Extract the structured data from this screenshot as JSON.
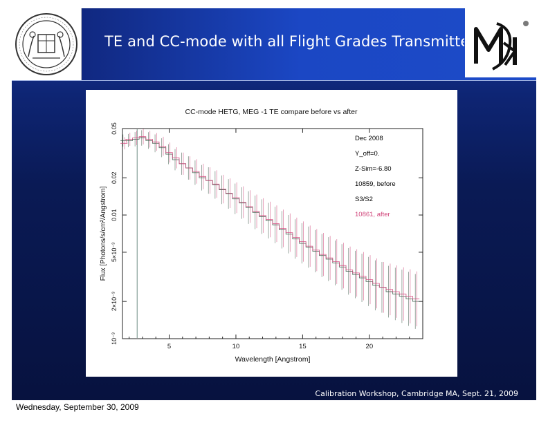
{
  "slide": {
    "title": "TE and CC-mode with all Flight Grades Transmitted",
    "footer": "Calibration Workshop, Cambridge MA, Sept. 21, 2009"
  },
  "page": {
    "date": "Wednesday, September 30, 2009"
  },
  "logos": {
    "left": "mit-seal",
    "right": "mki-logo"
  },
  "colors": {
    "series_before": "#3d5a4a",
    "series_after": "#d0457a",
    "marker_line": "#6f8f86",
    "slide_top": "#1c3aa8",
    "slide_bottom": "#07123f"
  },
  "chart_data": {
    "type": "line",
    "title": "CC-mode HETG, MEG -1 TE compare before vs after",
    "xlabel": "Wavelength [Angstrom]",
    "ylabel": "Flux [Photons/s/cm²/Angstrom]",
    "xscale": "linear",
    "yscale": "log",
    "xlim": [
      1.5,
      24
    ],
    "ylim": [
      0.001,
      0.05
    ],
    "xticks": [
      5,
      10,
      15,
      20
    ],
    "yticks": [
      {
        "value": 0.001,
        "label": "10⁻³"
      },
      {
        "value": 0.002,
        "label": "2×10⁻³"
      },
      {
        "value": 0.005,
        "label": "5×10⁻³"
      },
      {
        "value": 0.01,
        "label": "0.01"
      },
      {
        "value": 0.02,
        "label": "0.02"
      },
      {
        "value": 0.05,
        "label": "0.05"
      }
    ],
    "vline_x": 2.6,
    "legend_position": "top-right",
    "annotations": [
      {
        "text": "Dec 2008",
        "color": "#000000"
      },
      {
        "text": "Y_off=0.",
        "color": "#000000"
      },
      {
        "text": "Z-Sim=-6.80",
        "color": "#000000"
      },
      {
        "text": "10859, before",
        "color": "#000000"
      },
      {
        "text": "S3/S2",
        "color": "#000000"
      },
      {
        "text": "10861, after",
        "color": "#d0457a"
      }
    ],
    "series": [
      {
        "name": "10859, before",
        "x": [
          1.6,
          2.0,
          2.5,
          3.0,
          3.5,
          4.0,
          4.5,
          5.0,
          5.5,
          6.0,
          6.5,
          7.0,
          7.5,
          8.0,
          8.5,
          9.0,
          9.5,
          10.0,
          10.5,
          11.0,
          11.5,
          12.0,
          12.5,
          13.0,
          13.5,
          14.0,
          14.5,
          15.0,
          15.5,
          16.0,
          16.5,
          17.0,
          17.5,
          18.0,
          18.5,
          19.0,
          19.5,
          20.0,
          20.5,
          21.0,
          21.5,
          22.0,
          22.5,
          23.0,
          23.5
        ],
        "y": [
          0.04,
          0.04,
          0.041,
          0.042,
          0.04,
          0.038,
          0.035,
          0.031,
          0.028,
          0.026,
          0.024,
          0.022,
          0.02,
          0.019,
          0.0175,
          0.016,
          0.0148,
          0.0135,
          0.0125,
          0.0115,
          0.0105,
          0.0097,
          0.009,
          0.0083,
          0.0076,
          0.007,
          0.0064,
          0.0059,
          0.0055,
          0.0051,
          0.0047,
          0.0044,
          0.0041,
          0.0038,
          0.0035,
          0.0033,
          0.0031,
          0.0029,
          0.0027,
          0.0026,
          0.0024,
          0.0023,
          0.0022,
          0.0021,
          0.002
        ]
      },
      {
        "name": "10861, after",
        "x": [
          1.6,
          2.0,
          2.5,
          3.0,
          3.5,
          4.0,
          4.5,
          5.0,
          5.5,
          6.0,
          6.5,
          7.0,
          7.5,
          8.0,
          8.5,
          9.0,
          9.5,
          10.0,
          10.5,
          11.0,
          11.5,
          12.0,
          12.5,
          13.0,
          13.5,
          14.0,
          14.5,
          15.0,
          15.5,
          16.0,
          16.5,
          17.0,
          17.5,
          18.0,
          18.5,
          19.0,
          19.5,
          20.0,
          20.5,
          21.0,
          21.5,
          22.0,
          22.5,
          23.0,
          23.5
        ],
        "y": [
          0.038,
          0.041,
          0.042,
          0.043,
          0.041,
          0.039,
          0.036,
          0.032,
          0.029,
          0.026,
          0.024,
          0.0225,
          0.0205,
          0.019,
          0.0178,
          0.0162,
          0.015,
          0.0138,
          0.0127,
          0.0117,
          0.0107,
          0.0099,
          0.0092,
          0.0085,
          0.0078,
          0.0072,
          0.0066,
          0.0061,
          0.0056,
          0.0052,
          0.0048,
          0.0045,
          0.0042,
          0.0039,
          0.0036,
          0.0034,
          0.0032,
          0.003,
          0.0028,
          0.0026,
          0.0025,
          0.0024,
          0.0023,
          0.0022,
          0.0021
        ]
      }
    ]
  }
}
